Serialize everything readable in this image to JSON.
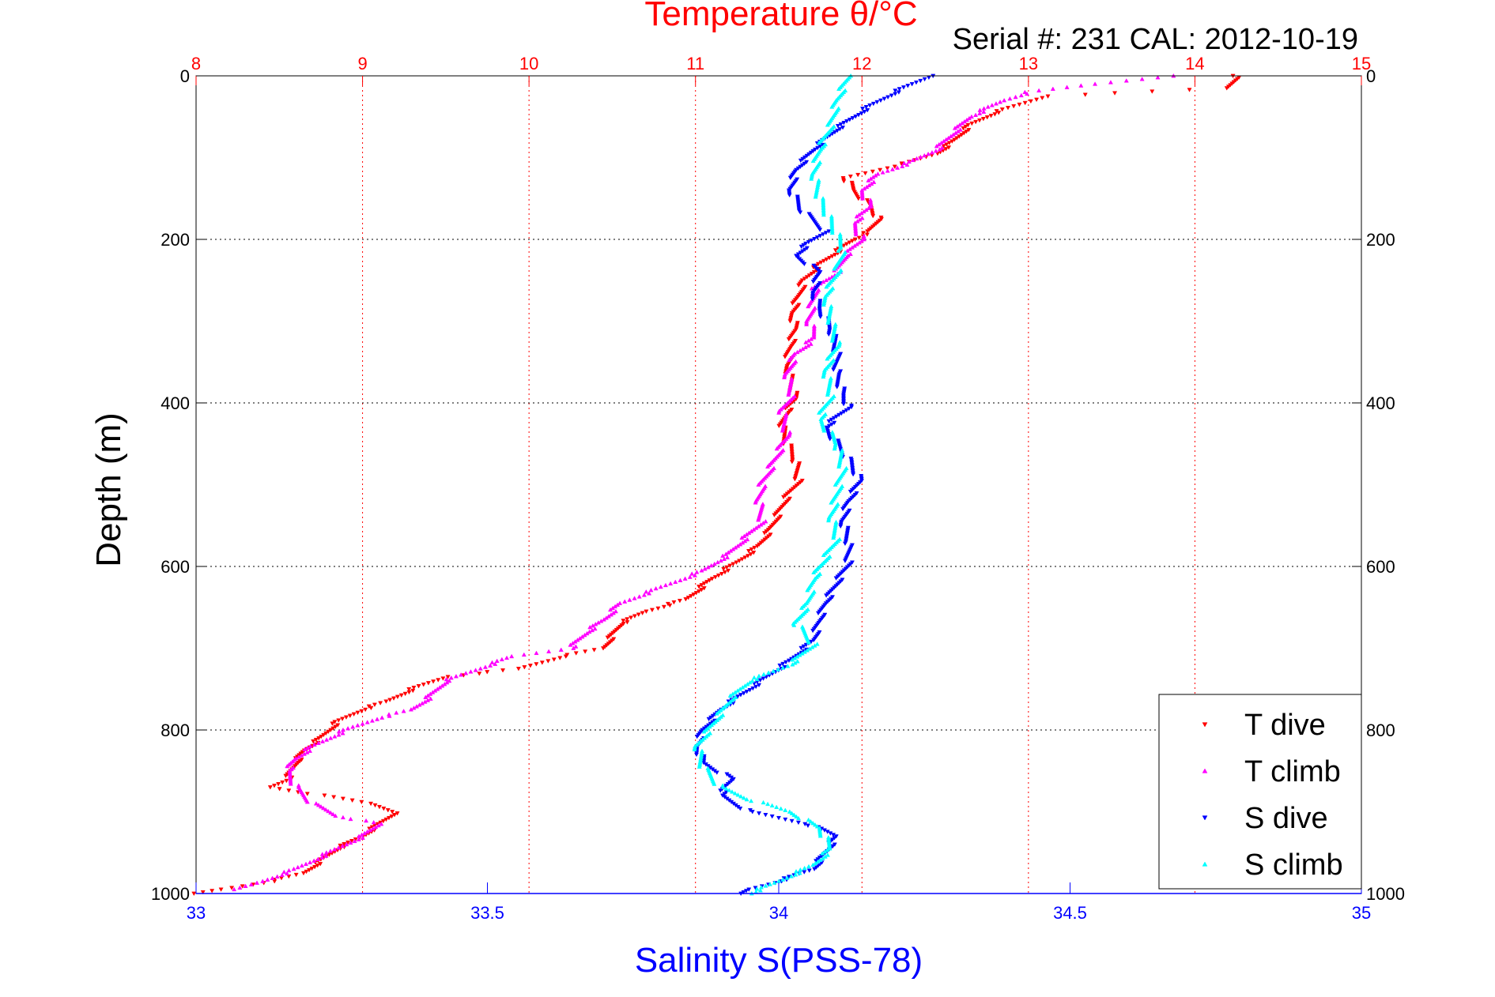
{
  "chart_data": {
    "type": "scatter",
    "title": "Temperature θ/°C",
    "subtitle": "Serial #: 231  CAL: 2012-10-19",
    "xlabel": "Salinity S(PSS-78)",
    "ylabel": "Depth (m)",
    "temperature_axis": {
      "range": [
        8,
        15
      ],
      "ticks": [
        "8",
        "9",
        "10",
        "11",
        "12",
        "13",
        "14",
        "15"
      ],
      "color": "#ff0000"
    },
    "salinity_axis": {
      "range": [
        33,
        35
      ],
      "ticks": [
        "33",
        "33.5",
        "34",
        "34.5",
        "35"
      ],
      "color": "#0000ff"
    },
    "depth_axis": {
      "range": [
        0,
        1000
      ],
      "reversed": true,
      "ticks": [
        "0",
        "200",
        "400",
        "600",
        "800",
        "1000"
      ]
    },
    "grid": true,
    "legend_position": "bottom-right",
    "series": [
      {
        "name": "T dive",
        "axis": "temperature",
        "color": "#ff0000",
        "marker": "triangle-down",
        "points": [
          [
            14.25,
            0
          ],
          [
            14.2,
            15
          ],
          [
            13.1,
            25
          ],
          [
            12.8,
            45
          ],
          [
            12.65,
            60
          ],
          [
            12.55,
            80
          ],
          [
            12.45,
            95
          ],
          [
            12.3,
            105
          ],
          [
            12.1,
            115
          ],
          [
            11.9,
            125
          ],
          [
            11.95,
            140
          ],
          [
            12.05,
            160
          ],
          [
            12.1,
            175
          ],
          [
            12.05,
            190
          ],
          [
            11.95,
            200
          ],
          [
            11.85,
            215
          ],
          [
            11.75,
            230
          ],
          [
            11.65,
            250
          ],
          [
            11.62,
            270
          ],
          [
            11.58,
            290
          ],
          [
            11.6,
            310
          ],
          [
            11.57,
            330
          ],
          [
            11.55,
            355
          ],
          [
            11.58,
            380
          ],
          [
            11.6,
            395
          ],
          [
            11.55,
            410
          ],
          [
            11.52,
            430
          ],
          [
            11.55,
            450
          ],
          [
            11.6,
            470
          ],
          [
            11.62,
            495
          ],
          [
            11.55,
            515
          ],
          [
            11.5,
            535
          ],
          [
            11.45,
            555
          ],
          [
            11.38,
            575
          ],
          [
            11.25,
            595
          ],
          [
            11.1,
            615
          ],
          [
            10.95,
            640
          ],
          [
            10.7,
            655
          ],
          [
            10.55,
            670
          ],
          [
            10.5,
            685
          ],
          [
            10.45,
            700
          ],
          [
            10.2,
            710
          ],
          [
            9.95,
            725
          ],
          [
            9.5,
            735
          ],
          [
            9.3,
            750
          ],
          [
            9.15,
            765
          ],
          [
            9.0,
            775
          ],
          [
            8.85,
            790
          ],
          [
            8.75,
            810
          ],
          [
            8.65,
            825
          ],
          [
            8.6,
            840
          ],
          [
            8.55,
            860
          ],
          [
            8.45,
            870
          ],
          [
            8.75,
            880
          ],
          [
            9.05,
            890
          ],
          [
            9.2,
            900
          ],
          [
            9.1,
            915
          ],
          [
            9.0,
            930
          ],
          [
            8.85,
            945
          ],
          [
            8.75,
            960
          ],
          [
            8.65,
            975
          ],
          [
            8.45,
            985
          ],
          [
            8.15,
            995
          ],
          [
            8.0,
            1000
          ]
        ]
      },
      {
        "name": "T climb",
        "axis": "temperature",
        "color": "#ff00ff",
        "marker": "triangle-up",
        "points": [
          [
            13.85,
            0
          ],
          [
            13.4,
            10
          ],
          [
            13.0,
            20
          ],
          [
            12.85,
            30
          ],
          [
            12.65,
            50
          ],
          [
            12.55,
            70
          ],
          [
            12.45,
            90
          ],
          [
            12.3,
            105
          ],
          [
            12.1,
            120
          ],
          [
            12.0,
            140
          ],
          [
            12.05,
            160
          ],
          [
            11.95,
            180
          ],
          [
            12.0,
            200
          ],
          [
            11.9,
            220
          ],
          [
            11.85,
            240
          ],
          [
            11.72,
            260
          ],
          [
            11.7,
            280
          ],
          [
            11.68,
            300
          ],
          [
            11.72,
            320
          ],
          [
            11.6,
            340
          ],
          [
            11.55,
            365
          ],
          [
            11.58,
            390
          ],
          [
            11.52,
            410
          ],
          [
            11.55,
            440
          ],
          [
            11.5,
            460
          ],
          [
            11.45,
            480
          ],
          [
            11.4,
            500
          ],
          [
            11.38,
            520
          ],
          [
            11.4,
            545
          ],
          [
            11.3,
            565
          ],
          [
            11.2,
            585
          ],
          [
            11.05,
            605
          ],
          [
            10.8,
            625
          ],
          [
            10.55,
            645
          ],
          [
            10.45,
            665
          ],
          [
            10.35,
            680
          ],
          [
            10.25,
            700
          ],
          [
            9.9,
            710
          ],
          [
            9.7,
            725
          ],
          [
            9.5,
            740
          ],
          [
            9.4,
            760
          ],
          [
            9.3,
            775
          ],
          [
            9.1,
            785
          ],
          [
            8.9,
            800
          ],
          [
            8.7,
            820
          ],
          [
            8.6,
            835
          ],
          [
            8.55,
            850
          ],
          [
            8.6,
            870
          ],
          [
            8.7,
            890
          ],
          [
            8.85,
            905
          ],
          [
            9.1,
            915
          ],
          [
            9.0,
            930
          ],
          [
            8.8,
            950
          ],
          [
            8.6,
            970
          ],
          [
            8.4,
            985
          ],
          [
            8.25,
            995
          ]
        ]
      },
      {
        "name": "S dive",
        "axis": "salinity",
        "color": "#0000ff",
        "marker": "triangle-down",
        "points": [
          [
            34.26,
            0
          ],
          [
            34.2,
            20
          ],
          [
            34.15,
            40
          ],
          [
            34.1,
            65
          ],
          [
            34.06,
            90
          ],
          [
            34.03,
            115
          ],
          [
            34.02,
            140
          ],
          [
            34.04,
            165
          ],
          [
            34.08,
            190
          ],
          [
            34.05,
            205
          ],
          [
            34.03,
            220
          ],
          [
            34.07,
            240
          ],
          [
            34.06,
            265
          ],
          [
            34.07,
            285
          ],
          [
            34.09,
            310
          ],
          [
            34.1,
            340
          ],
          [
            34.1,
            365
          ],
          [
            34.11,
            390
          ],
          [
            34.12,
            405
          ],
          [
            34.08,
            430
          ],
          [
            34.1,
            450
          ],
          [
            34.12,
            470
          ],
          [
            34.14,
            495
          ],
          [
            34.12,
            520
          ],
          [
            34.11,
            545
          ],
          [
            34.12,
            570
          ],
          [
            34.12,
            595
          ],
          [
            34.1,
            620
          ],
          [
            34.08,
            645
          ],
          [
            34.07,
            665
          ],
          [
            34.06,
            690
          ],
          [
            34.02,
            715
          ],
          [
            33.98,
            735
          ],
          [
            33.94,
            755
          ],
          [
            33.9,
            775
          ],
          [
            33.87,
            800
          ],
          [
            33.86,
            820
          ],
          [
            33.87,
            840
          ],
          [
            33.92,
            860
          ],
          [
            33.9,
            880
          ],
          [
            33.95,
            900
          ],
          [
            34.05,
            915
          ],
          [
            34.1,
            930
          ],
          [
            34.08,
            950
          ],
          [
            34.06,
            970
          ],
          [
            34.0,
            985
          ],
          [
            33.95,
            995
          ],
          [
            33.94,
            1000
          ]
        ]
      },
      {
        "name": "S climb",
        "axis": "salinity",
        "color": "#00ffff",
        "marker": "triangle-up",
        "points": [
          [
            34.12,
            0
          ],
          [
            34.1,
            30
          ],
          [
            34.09,
            60
          ],
          [
            34.07,
            90
          ],
          [
            34.06,
            120
          ],
          [
            34.07,
            150
          ],
          [
            34.09,
            180
          ],
          [
            34.11,
            210
          ],
          [
            34.1,
            240
          ],
          [
            34.08,
            270
          ],
          [
            34.09,
            300
          ],
          [
            34.1,
            330
          ],
          [
            34.08,
            360
          ],
          [
            34.09,
            390
          ],
          [
            34.07,
            420
          ],
          [
            34.1,
            450
          ],
          [
            34.11,
            480
          ],
          [
            34.1,
            510
          ],
          [
            34.09,
            540
          ],
          [
            34.1,
            565
          ],
          [
            34.08,
            590
          ],
          [
            34.06,
            615
          ],
          [
            34.05,
            645
          ],
          [
            34.03,
            670
          ],
          [
            34.06,
            695
          ],
          [
            34.02,
            720
          ],
          [
            33.95,
            740
          ],
          [
            33.92,
            760
          ],
          [
            33.89,
            790
          ],
          [
            33.86,
            820
          ],
          [
            33.87,
            845
          ],
          [
            33.9,
            870
          ],
          [
            33.95,
            885
          ],
          [
            34.02,
            900
          ],
          [
            34.07,
            920
          ],
          [
            34.09,
            945
          ],
          [
            34.06,
            965
          ],
          [
            34.0,
            985
          ],
          [
            33.95,
            1000
          ]
        ]
      }
    ]
  }
}
